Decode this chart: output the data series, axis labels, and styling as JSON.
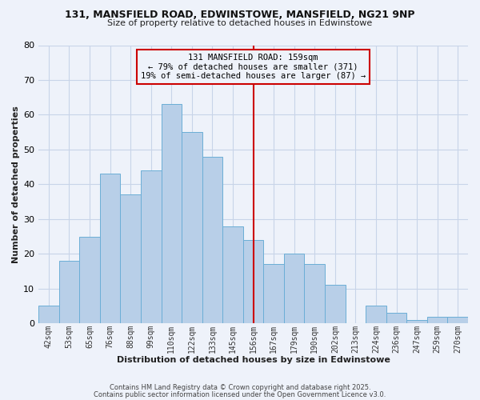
{
  "title_line1": "131, MANSFIELD ROAD, EDWINSTOWE, MANSFIELD, NG21 9NP",
  "title_line2": "Size of property relative to detached houses in Edwinstowe",
  "xlabel": "Distribution of detached houses by size in Edwinstowe",
  "ylabel": "Number of detached properties",
  "categories": [
    "42sqm",
    "53sqm",
    "65sqm",
    "76sqm",
    "88sqm",
    "99sqm",
    "110sqm",
    "122sqm",
    "133sqm",
    "145sqm",
    "156sqm",
    "167sqm",
    "179sqm",
    "190sqm",
    "202sqm",
    "213sqm",
    "224sqm",
    "236sqm",
    "247sqm",
    "259sqm",
    "270sqm"
  ],
  "values": [
    5,
    18,
    25,
    43,
    37,
    44,
    63,
    55,
    48,
    28,
    24,
    17,
    20,
    17,
    11,
    0,
    5,
    3,
    1,
    2,
    2
  ],
  "bar_color": "#b8cfe8",
  "bar_edge_color": "#6baed6",
  "grid_color": "#c8d4e8",
  "background_color": "#eef2fa",
  "vline_x_index": 10,
  "vline_color": "#cc0000",
  "annotation_text": "131 MANSFIELD ROAD: 159sqm\n← 79% of detached houses are smaller (371)\n19% of semi-detached houses are larger (87) →",
  "annotation_box_color": "#cc0000",
  "ylim": [
    0,
    80
  ],
  "yticks": [
    0,
    10,
    20,
    30,
    40,
    50,
    60,
    70,
    80
  ],
  "footer_line1": "Contains HM Land Registry data © Crown copyright and database right 2025.",
  "footer_line2": "Contains public sector information licensed under the Open Government Licence v3.0.",
  "title1_fontsize": 9,
  "title2_fontsize": 8,
  "xlabel_fontsize": 8,
  "ylabel_fontsize": 8,
  "tick_fontsize": 7,
  "footer_fontsize": 6,
  "ann_fontsize": 7.5
}
